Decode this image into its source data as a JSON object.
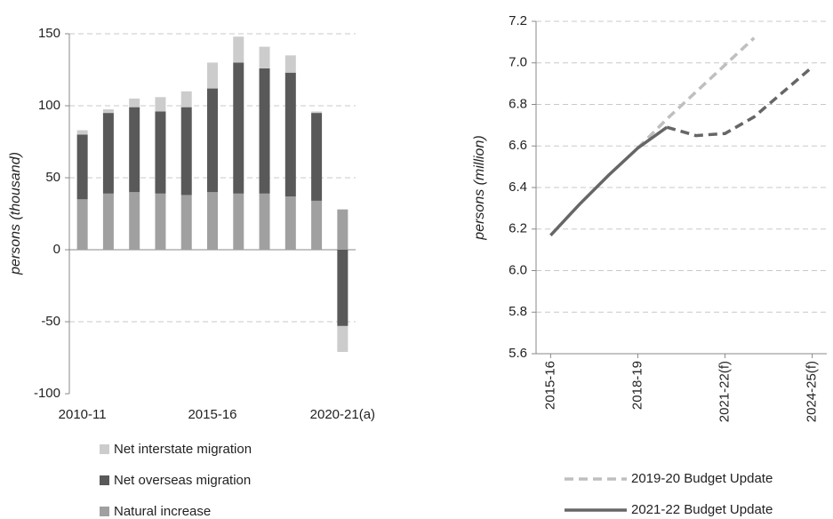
{
  "chart_data": [
    {
      "type": "stacked_bar",
      "categories": [
        "2010-11",
        null,
        null,
        null,
        null,
        "2015-16",
        null,
        null,
        null,
        null,
        "2020-21(a)"
      ],
      "y_label": "persons (thousand)",
      "ylim": [
        -100,
        150
      ],
      "yticks": [
        -100,
        -50,
        0,
        50,
        100,
        150
      ],
      "grid": true,
      "series": [
        {
          "name": "Natural increase",
          "color": "#a0a0a0",
          "values": [
            35,
            39,
            40,
            39,
            38,
            40,
            39,
            39,
            37,
            34,
            28
          ]
        },
        {
          "name": "Net overseas migration",
          "color": "#595959",
          "values": [
            45,
            56,
            59,
            57,
            61,
            72,
            91,
            87,
            86,
            61,
            -53
          ]
        },
        {
          "name": "Net interstate migration",
          "color": "#cccccc",
          "values": [
            3,
            2.5,
            6,
            10,
            11,
            18,
            18,
            15,
            12,
            1,
            -18
          ]
        }
      ]
    },
    {
      "type": "line",
      "categories": [
        "2015-16",
        null,
        null,
        "2018-19",
        null,
        null,
        "2021-22(f)",
        null,
        null,
        "2024-25(f)"
      ],
      "y_label": "persons (million)",
      "ylim": [
        5.6,
        7.2
      ],
      "yticks": [
        {
          "value": 5.6,
          "label": "5.6"
        },
        {
          "value": 5.8,
          "label": "5.8"
        },
        {
          "value": 6,
          "label": "6.0"
        },
        {
          "value": 6.2,
          "label": "6.2"
        },
        {
          "value": 6.4,
          "label": "6.4"
        },
        {
          "value": 6.6,
          "label": "6.6"
        },
        {
          "value": 6.8,
          "label": "6.8"
        },
        {
          "value": 7,
          "label": "7.0"
        },
        {
          "value": 7.2,
          "label": "7.2"
        }
      ],
      "grid": true,
      "series": [
        {
          "name": "2019-20 Budget Update",
          "color": "#bfbfbf",
          "dashed": true,
          "values": [
            null,
            null,
            null,
            6.59,
            6.73,
            6.86,
            6.99,
            7.12,
            null,
            null
          ]
        },
        {
          "name": "2021-22 Budget Update",
          "color": "#666666",
          "dashed_from_index": 4,
          "values": [
            6.17,
            6.32,
            6.46,
            6.59,
            6.69,
            6.65,
            6.66,
            6.74,
            6.86,
            6.98
          ]
        }
      ]
    }
  ]
}
